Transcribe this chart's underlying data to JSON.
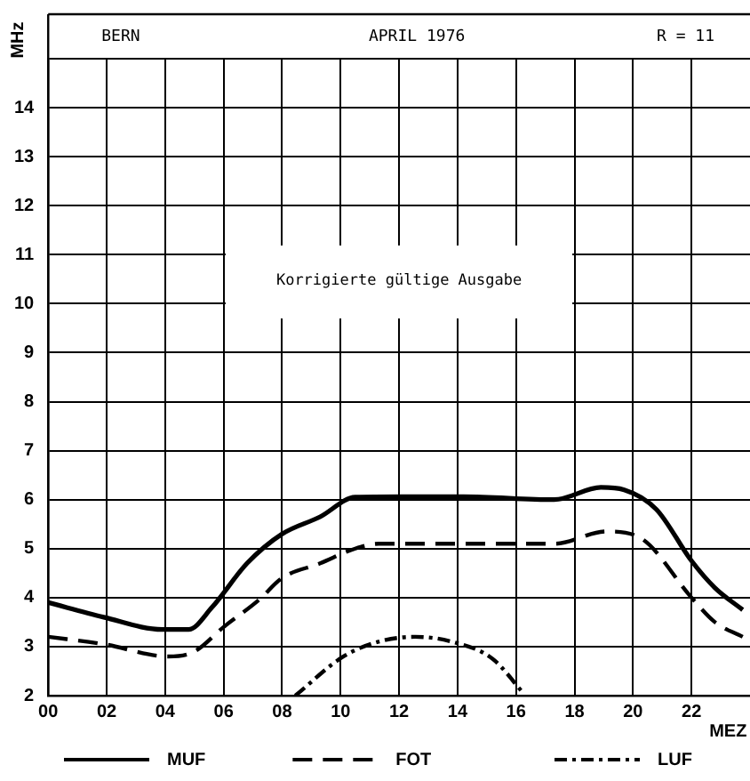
{
  "chart_data": {
    "type": "line",
    "title": "APRIL 1976",
    "ylabel": "MHz",
    "xlabel": "MEZ",
    "annotations": [
      "BERN",
      "R = 11",
      "Korrigierte gültige Ausgabe"
    ],
    "xlim": [
      0,
      24
    ],
    "xticks": [
      {
        "value": 0,
        "label": "00"
      },
      {
        "value": 2,
        "label": "02"
      },
      {
        "value": 4,
        "label": "04"
      },
      {
        "value": 6,
        "label": "06"
      },
      {
        "value": 8,
        "label": "08"
      },
      10,
      12,
      14,
      16,
      18,
      20,
      22
    ],
    "ylim": [
      2,
      15
    ],
    "yticks": [
      2,
      3,
      4,
      5,
      6,
      7,
      8,
      9,
      10,
      11,
      12,
      13,
      14,
      {
        "value": 15,
        "label": null
      }
    ],
    "grid": true,
    "legend": "bottom",
    "marker": "none",
    "series": [
      {
        "name": "MUF",
        "color": "#000000",
        "line_style": "solid",
        "x": [
          0,
          1.9,
          3.9,
          4.8,
          5.6,
          6.8,
          8.0,
          9.3,
          10.5,
          12.1,
          14.2,
          17.3,
          18.9,
          19.7,
          20.8,
          22,
          22.8,
          23.75
        ],
        "values": [
          3.9,
          3.6,
          3.35,
          3.35,
          3.8,
          4.7,
          5.3,
          5.65,
          6.05,
          6.06,
          6.06,
          6.0,
          6.25,
          6.2,
          5.8,
          4.75,
          4.2,
          3.75
        ]
      },
      {
        "name": "FOT",
        "color": "#000000",
        "line_style": "dashed",
        "x": [
          0,
          1.9,
          4.1,
          5,
          6,
          7.2,
          8,
          9.3,
          10.5,
          11.3,
          14.2,
          17.3,
          19.1,
          20.3,
          22,
          22.8,
          23.75
        ],
        "values": [
          3.2,
          3.05,
          2.8,
          2.9,
          3.4,
          3.95,
          4.4,
          4.7,
          5.0,
          5.1,
          5.1,
          5.1,
          5.35,
          5.2,
          4.0,
          3.5,
          3.2
        ]
      },
      {
        "name": "LUF",
        "color": "#000000",
        "line_style": "dashdot",
        "x": [
          8.45,
          10.1,
          11.3,
          12.55,
          13.8,
          15.2,
          16.25
        ],
        "values": [
          2.0,
          2.8,
          3.1,
          3.2,
          3.1,
          2.75,
          2.05
        ]
      }
    ]
  }
}
